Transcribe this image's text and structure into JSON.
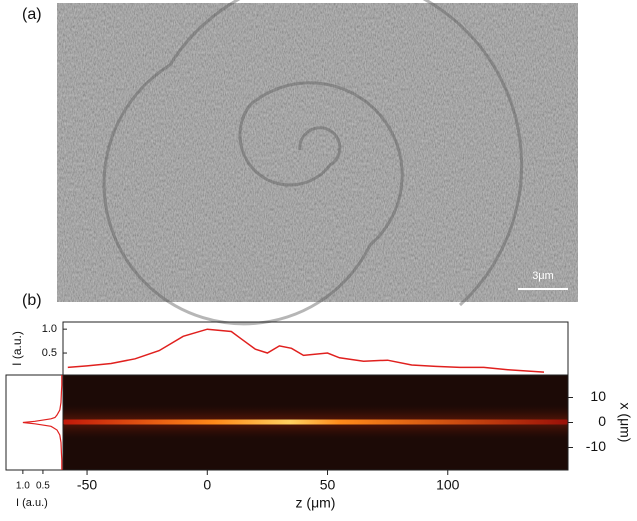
{
  "figure": {
    "panel_a": "(a)",
    "panel_b": "(b)",
    "scale_bar": "3μm"
  },
  "chart_data": [
    {
      "type": "line",
      "ylabel": "I (a.u.)",
      "color": "#e0201e",
      "x": [
        -58,
        -50,
        -40,
        -30,
        -20,
        -10,
        0,
        10,
        14,
        20,
        25,
        30,
        35,
        40,
        50,
        55,
        65,
        75,
        85,
        95,
        105,
        115,
        125,
        140
      ],
      "values": [
        0.2,
        0.23,
        0.28,
        0.38,
        0.55,
        0.85,
        1.0,
        0.95,
        0.8,
        0.58,
        0.5,
        0.65,
        0.6,
        0.45,
        0.5,
        0.4,
        0.33,
        0.35,
        0.25,
        0.22,
        0.2,
        0.2,
        0.15,
        0.1
      ],
      "xlim": [
        -60,
        150
      ],
      "ylim": [
        0.04,
        1.15
      ],
      "yticks": [
        0.5,
        {
          "value": 1,
          "label": "1.0"
        }
      ]
    },
    {
      "type": "heatmap",
      "xlabel": "z (μm)",
      "ylabel": "x (μm)",
      "xlim": [
        -60,
        150
      ],
      "xticks": [
        -50,
        0,
        50,
        100
      ],
      "ylim": [
        -19,
        19
      ],
      "yticks": [
        -10,
        0,
        10
      ]
    },
    {
      "type": "profile",
      "xlabel": "I (a.u.)",
      "color": "#e0201e",
      "y": [
        -19,
        -15,
        -12,
        -8,
        -5,
        -3,
        -2,
        -1.5,
        -0.5,
        0,
        0.5,
        1.5,
        2,
        3,
        5,
        8,
        12,
        15,
        19
      ],
      "values": [
        0.03,
        0.03,
        0.04,
        0.05,
        0.08,
        0.15,
        0.25,
        0.3,
        0.7,
        1.0,
        0.7,
        0.3,
        0.2,
        0.15,
        0.08,
        0.05,
        0.04,
        0.03,
        0.03
      ],
      "xlim": [
        1.42,
        0
      ],
      "ylim": [
        -19,
        19
      ],
      "xticks": [
        {
          "value": 1,
          "label": "1.0"
        },
        0.5
      ]
    }
  ]
}
